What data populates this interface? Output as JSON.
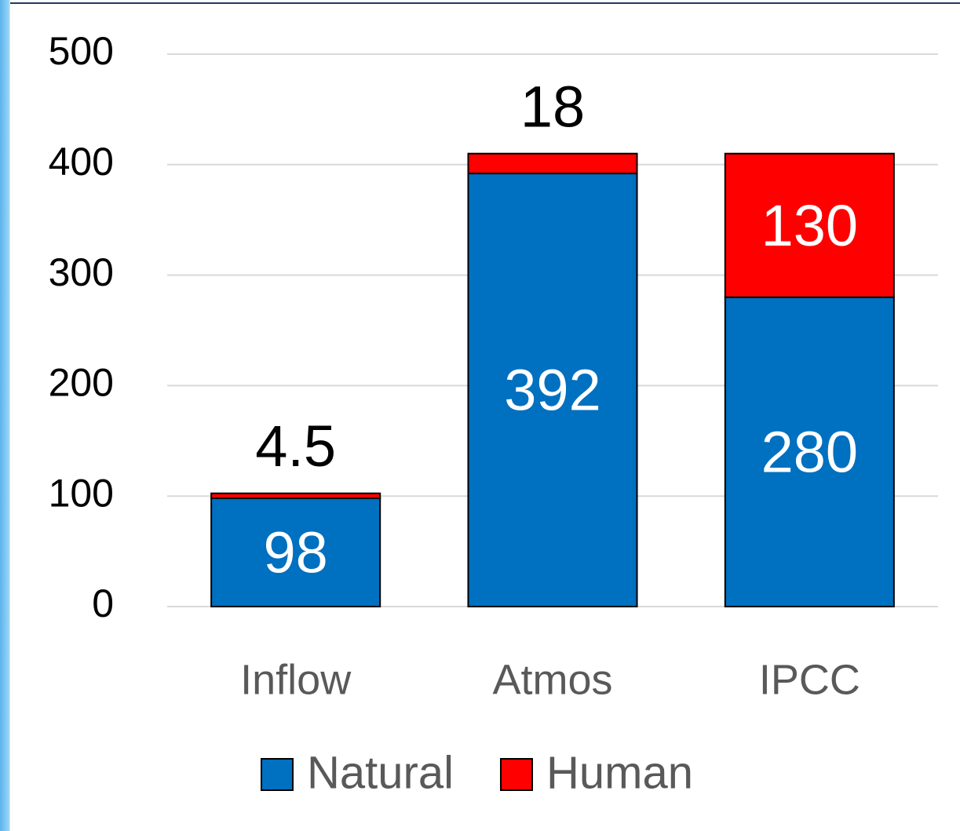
{
  "chart_data": {
    "type": "bar",
    "stacked": true,
    "categories": [
      "Inflow",
      "Atmos",
      "IPCC"
    ],
    "series": [
      {
        "name": "Natural",
        "color": "#0070c0",
        "values": [
          98,
          392,
          280
        ]
      },
      {
        "name": "Human",
        "color": "#ff0000",
        "values": [
          4.5,
          18,
          130
        ]
      }
    ],
    "ylim": [
      0,
      500
    ],
    "yticks": [
      0,
      100,
      200,
      300,
      400,
      500
    ],
    "grid": true,
    "legend": "bottom"
  }
}
